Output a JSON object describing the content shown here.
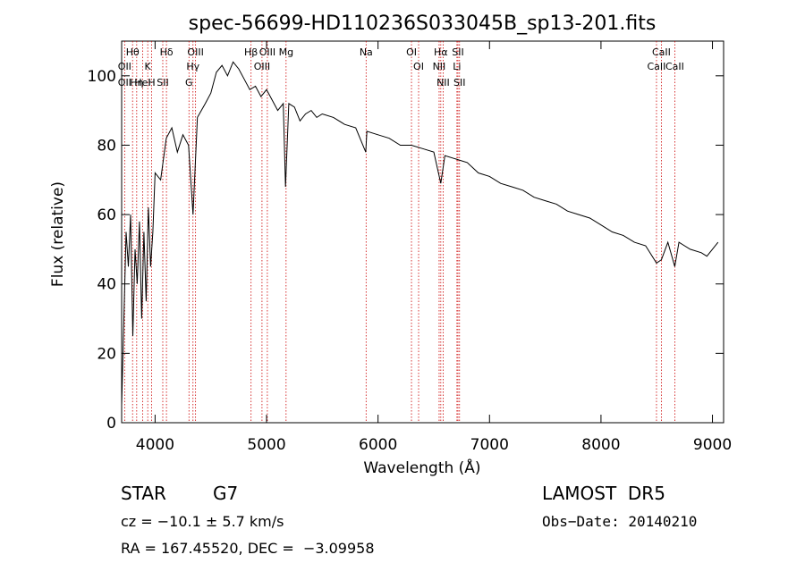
{
  "chart_data": {
    "type": "line",
    "title": "spec-56699-HD110236S033045B_sp13-201.fits",
    "xlabel": "Wavelength (Å)",
    "ylabel": "Flux (relative)",
    "xlim": [
      3700,
      9100
    ],
    "ylim": [
      0,
      110
    ],
    "xticks": [
      4000,
      5000,
      6000,
      7000,
      8000,
      9000
    ],
    "yticks": [
      0,
      20,
      40,
      60,
      80,
      100
    ],
    "line_color": "#000000",
    "marker_color": "#cc0000",
    "series": [
      {
        "x": [
          3700,
          3720,
          3740,
          3760,
          3780,
          3800,
          3820,
          3840,
          3860,
          3880,
          3900,
          3920,
          3940,
          3960,
          3980,
          4000,
          4050,
          4100,
          4150,
          4200,
          4250,
          4300,
          4340,
          4380,
          4450,
          4500,
          4550,
          4600,
          4650,
          4700,
          4750,
          4800,
          4850,
          4900,
          4950,
          5000,
          5050,
          5100,
          5150,
          5170,
          5200,
          5250,
          5300,
          5350,
          5400,
          5450,
          5500,
          5600,
          5700,
          5800,
          5890,
          5900,
          6000,
          6100,
          6200,
          6300,
          6400,
          6500,
          6563,
          6600,
          6700,
          6800,
          6900,
          7000,
          7100,
          7200,
          7300,
          7400,
          7500,
          7600,
          7700,
          7800,
          7900,
          8000,
          8100,
          8200,
          8300,
          8400,
          8498,
          8542,
          8600,
          8662,
          8700,
          8800,
          8900,
          8950,
          9000,
          9050
        ],
        "y": [
          5,
          30,
          55,
          45,
          60,
          25,
          50,
          40,
          58,
          30,
          55,
          35,
          62,
          45,
          55,
          72,
          70,
          82,
          85,
          78,
          83,
          80,
          60,
          88,
          92,
          95,
          101,
          103,
          100,
          104,
          102,
          99,
          96,
          97,
          94,
          96,
          93,
          90,
          92,
          68,
          92,
          91,
          87,
          89,
          90,
          88,
          89,
          88,
          86,
          85,
          78,
          84,
          83,
          82,
          80,
          80,
          79,
          78,
          69,
          77,
          76,
          75,
          72,
          71,
          69,
          68,
          67,
          65,
          64,
          63,
          61,
          60,
          59,
          57,
          55,
          54,
          52,
          51,
          46,
          47,
          52,
          45,
          52,
          50,
          49,
          48,
          50,
          52
        ]
      }
    ],
    "annotations": [
      {
        "text": "Hθ",
        "x": 3798
      },
      {
        "text": "OII",
        "x": 3727
      },
      {
        "text": "OII",
        "x": 3727
      },
      {
        "text": "K",
        "x": 3934
      },
      {
        "text": "HeI",
        "x": 3889
      },
      {
        "text": "Hη",
        "x": 3835
      },
      {
        "text": "Hδ",
        "x": 4102
      },
      {
        "text": "SII",
        "x": 4069
      },
      {
        "text": "H",
        "x": 3969
      },
      {
        "text": "OIII",
        "x": 4363
      },
      {
        "text": "Hγ",
        "x": 4340
      },
      {
        "text": "G",
        "x": 4304
      },
      {
        "text": "OIII",
        "x": 5007
      },
      {
        "text": "OIII",
        "x": 4959
      },
      {
        "text": "Hβ",
        "x": 4861
      },
      {
        "text": "Mg",
        "x": 5175
      },
      {
        "text": "Na",
        "x": 5893
      },
      {
        "text": "OI",
        "x": 6300
      },
      {
        "text": "OI",
        "x": 6364
      },
      {
        "text": "Hα",
        "x": 6563
      },
      {
        "text": "NII",
        "x": 6548
      },
      {
        "text": "NII",
        "x": 6584
      },
      {
        "text": "SII",
        "x": 6717
      },
      {
        "text": "Li",
        "x": 6708
      },
      {
        "text": "SII",
        "x": 6731
      },
      {
        "text": "CaII",
        "x": 8542
      },
      {
        "text": "CaII",
        "x": 8498
      },
      {
        "text": "CaII",
        "x": 8662
      }
    ],
    "marker_lines": [
      3727,
      3798,
      3835,
      3889,
      3934,
      3969,
      4069,
      4102,
      4304,
      4340,
      4363,
      4861,
      4959,
      5007,
      5175,
      5893,
      6300,
      6364,
      6548,
      6563,
      6584,
      6708,
      6717,
      6731,
      8498,
      8542,
      8662
    ]
  },
  "info": {
    "object_type": "STAR",
    "subclass": "G7",
    "survey": "LAMOST  DR5",
    "cz": "cz = −10.1 ± 5.7 km/s",
    "obs_date": "Obs−Date: 20140210",
    "coords": "RA = 167.45520, DEC =  −3.09958"
  }
}
